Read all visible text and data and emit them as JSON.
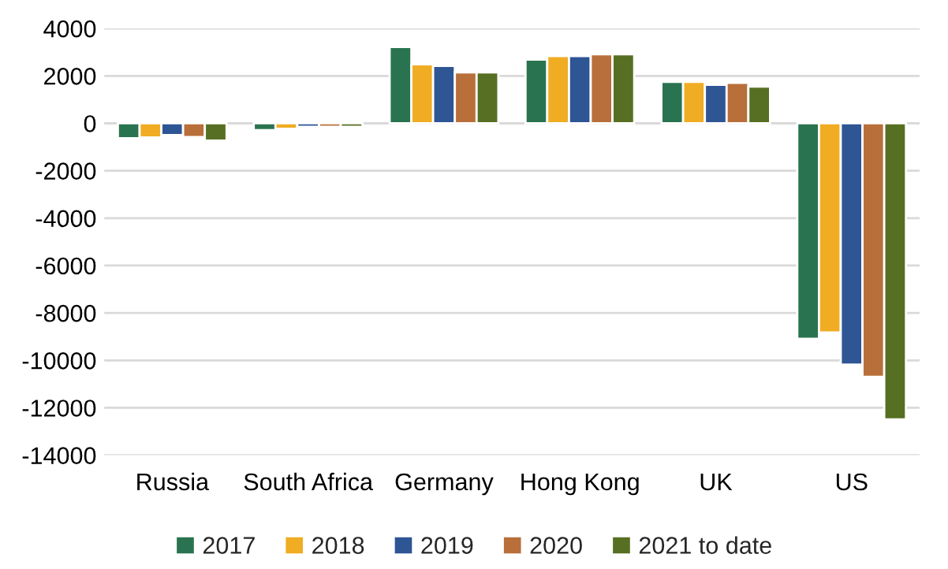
{
  "chart_data": {
    "type": "bar",
    "categories": [
      "Russia",
      "South Africa",
      "Germany",
      "Hong Kong",
      "UK",
      "US"
    ],
    "series": [
      {
        "name": "2017",
        "color": "#2a7350",
        "values": [
          -630,
          -290,
          3220,
          2690,
          1750,
          -9090
        ]
      },
      {
        "name": "2018",
        "color": "#f0ac22",
        "values": [
          -600,
          -230,
          2490,
          2840,
          1750,
          -8820
        ]
      },
      {
        "name": "2019",
        "color": "#2e5594",
        "values": [
          -500,
          -150,
          2420,
          2840,
          1620,
          -10180
        ]
      },
      {
        "name": "2020",
        "color": "#b86f3a",
        "values": [
          -580,
          -150,
          2150,
          2910,
          1710,
          -10690
        ]
      },
      {
        "name": "2021 to date",
        "color": "#566f22",
        "values": [
          -730,
          -150,
          2150,
          2910,
          1550,
          -12490
        ]
      }
    ],
    "ylim": [
      -14000,
      4000
    ],
    "yticks": [
      -14000,
      -12000,
      -10000,
      -8000,
      -6000,
      -4000,
      -2000,
      0,
      2000,
      4000
    ],
    "grid": "y",
    "legend": "bottom"
  }
}
